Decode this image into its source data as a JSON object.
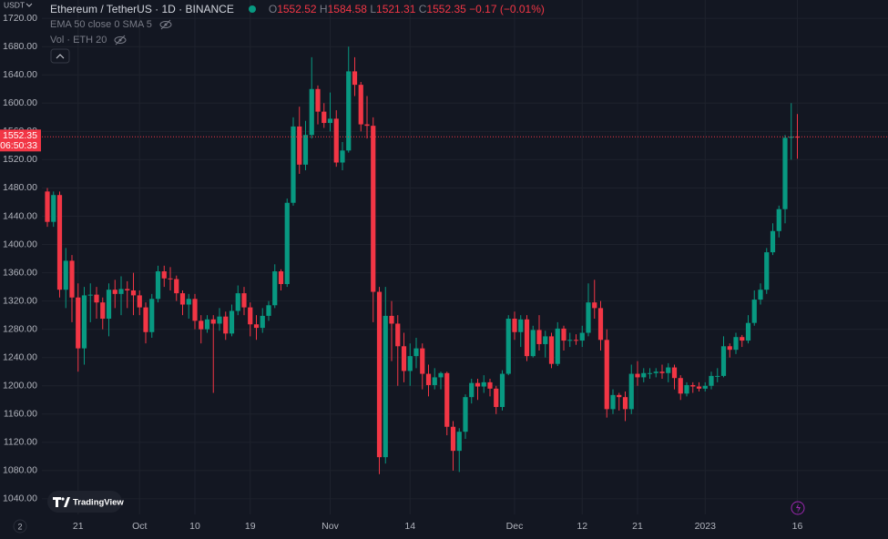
{
  "chart_data": {
    "type": "candlestick",
    "title": "Ethereum / TetherUS · 1D · BINANCE",
    "currency": "USDT",
    "indicator_1": "EMA 50 close 0 SMA 5",
    "indicator_2": "Vol · ETH 20",
    "legend": {
      "o": "O",
      "h": "H",
      "l": "L",
      "c": "C",
      "change": "−0.17 (−0.01%)"
    },
    "countdown": "06:50:33",
    "brand": "TradingView",
    "axis_corner": "2",
    "up_color": "#089981",
    "down_color": "#f23645",
    "grid": true,
    "ylim": [
      1018,
      1746
    ],
    "yticks": [
      {
        "value": 1040,
        "label": "1040.00"
      },
      {
        "value": 1080,
        "label": "1080.00"
      },
      {
        "value": 1120,
        "label": "1120.00"
      },
      {
        "value": 1160,
        "label": "1160.00"
      },
      {
        "value": 1200,
        "label": "1200.00"
      },
      {
        "value": 1240,
        "label": "1240.00"
      },
      {
        "value": 1280,
        "label": "1280.00"
      },
      {
        "value": 1320,
        "label": "1320.00"
      },
      {
        "value": 1360,
        "label": "1360.00"
      },
      {
        "value": 1400,
        "label": "1400.00"
      },
      {
        "value": 1440,
        "label": "1440.00"
      },
      {
        "value": 1480,
        "label": "1480.00"
      },
      {
        "value": 1520,
        "label": "1520.00"
      },
      {
        "value": 1560,
        "label": "1560.00"
      },
      {
        "value": 1600,
        "label": "1600.00"
      },
      {
        "value": 1640,
        "label": "1640.00"
      },
      {
        "value": 1680,
        "label": "1680.00"
      },
      {
        "value": 1720,
        "label": "1720.00"
      }
    ],
    "categories": [
      null,
      null,
      null,
      null,
      null,
      "21",
      null,
      null,
      null,
      null,
      null,
      null,
      null,
      null,
      null,
      "Oct",
      null,
      null,
      null,
      null,
      null,
      null,
      null,
      null,
      "10",
      null,
      null,
      null,
      null,
      null,
      null,
      null,
      null,
      "19",
      null,
      null,
      null,
      null,
      null,
      null,
      null,
      null,
      null,
      null,
      null,
      null,
      "Nov",
      null,
      null,
      null,
      null,
      null,
      null,
      null,
      null,
      null,
      null,
      null,
      null,
      "14",
      null,
      null,
      null,
      null,
      null,
      null,
      null,
      null,
      null,
      null,
      null,
      null,
      null,
      null,
      null,
      null,
      "Dec",
      null,
      null,
      null,
      null,
      null,
      null,
      null,
      null,
      null,
      null,
      "12",
      null,
      null,
      null,
      null,
      null,
      null,
      null,
      null,
      "21",
      null,
      null,
      null,
      null,
      null,
      null,
      null,
      null,
      null,
      null,
      "2023",
      null,
      null,
      null,
      null,
      null,
      null,
      null,
      null,
      null,
      null,
      null,
      null,
      null,
      null,
      "16"
    ],
    "open": [
      1475,
      1432,
      1470,
      1336,
      1377,
      1325,
      1253,
      1328,
      1329,
      1318,
      1295,
      1336,
      1330,
      1337,
      1335,
      1328,
      1311,
      1276,
      1323,
      1362,
      1352,
      1351,
      1331,
      1315,
      1323,
      1292,
      1280,
      1294,
      1288,
      1298,
      1274,
      1306,
      1331,
      1311,
      1287,
      1282,
      1299,
      1314,
      1362,
      1344,
      1459,
      1567,
      1513,
      1555,
      1620,
      1588,
      1572,
      1578,
      1516,
      1533,
      1645,
      1626,
      1570,
      1568,
      1333,
      1099,
      1299,
      1288,
      1256,
      1221,
      1242,
      1253,
      1217,
      1201,
      1212,
      1218,
      1142,
      1108,
      1135,
      1184,
      1204,
      1199,
      1205,
      1196,
      1170,
      1217,
      1295,
      1276,
      1294,
      1242,
      1279,
      1259,
      1270,
      1231,
      1281,
      1264,
      1265,
      1264,
      1275,
      1318,
      1310,
      1265,
      1167,
      1187,
      1184,
      1167,
      1217,
      1212,
      1218,
      1218,
      1220,
      1218,
      1226,
      1211,
      1189,
      1201,
      1199,
      1196,
      1200,
      1214,
      1214,
      1256,
      1251,
      1269,
      1264,
      1289,
      1322,
      1336,
      1389,
      1419,
      1450,
      1551,
      1552.52
    ],
    "high": [
      1480,
      1475,
      1475,
      1395,
      1385,
      1345,
      1340,
      1345,
      1340,
      1325,
      1345,
      1350,
      1355,
      1348,
      1360,
      1335,
      1318,
      1330,
      1370,
      1370,
      1368,
      1356,
      1335,
      1330,
      1330,
      1300,
      1300,
      1300,
      1310,
      1305,
      1315,
      1342,
      1340,
      1318,
      1300,
      1310,
      1320,
      1372,
      1365,
      1465,
      1580,
      1595,
      1575,
      1665,
      1625,
      1600,
      1615,
      1590,
      1545,
      1680,
      1665,
      1630,
      1610,
      1580,
      1340,
      1340,
      1320,
      1300,
      1275,
      1260,
      1268,
      1260,
      1230,
      1225,
      1220,
      1220,
      1150,
      1140,
      1188,
      1210,
      1210,
      1215,
      1210,
      1200,
      1222,
      1300,
      1305,
      1300,
      1300,
      1285,
      1300,
      1278,
      1275,
      1290,
      1285,
      1275,
      1273,
      1285,
      1345,
      1350,
      1320,
      1280,
      1195,
      1190,
      1192,
      1230,
      1235,
      1225,
      1225,
      1225,
      1230,
      1232,
      1230,
      1215,
      1205,
      1205,
      1205,
      1205,
      1220,
      1225,
      1270,
      1260,
      1275,
      1272,
      1300,
      1335,
      1345,
      1395,
      1430,
      1455,
      1555,
      1600,
      1584.58
    ],
    "low": [
      1425,
      1425,
      1325,
      1310,
      1290,
      1220,
      1230,
      1290,
      1295,
      1280,
      1270,
      1310,
      1300,
      1310,
      1300,
      1300,
      1260,
      1268,
      1318,
      1340,
      1335,
      1320,
      1300,
      1295,
      1280,
      1260,
      1275,
      1190,
      1278,
      1265,
      1270,
      1300,
      1300,
      1270,
      1265,
      1275,
      1292,
      1310,
      1335,
      1340,
      1455,
      1500,
      1505,
      1550,
      1570,
      1565,
      1560,
      1510,
      1505,
      1530,
      1610,
      1560,
      1550,
      1290,
      1075,
      1090,
      1235,
      1200,
      1205,
      1200,
      1225,
      1195,
      1185,
      1195,
      1195,
      1130,
      1080,
      1078,
      1125,
      1175,
      1180,
      1190,
      1185,
      1160,
      1165,
      1215,
      1265,
      1255,
      1235,
      1240,
      1250,
      1240,
      1225,
      1228,
      1250,
      1255,
      1258,
      1255,
      1270,
      1295,
      1250,
      1155,
      1160,
      1165,
      1150,
      1160,
      1200,
      1205,
      1210,
      1212,
      1210,
      1205,
      1195,
      1180,
      1185,
      1190,
      1192,
      1192,
      1195,
      1205,
      1212,
      1240,
      1245,
      1255,
      1260,
      1285,
      1315,
      1330,
      1385,
      1410,
      1430,
      1520,
      1521.31
    ],
    "close": [
      1432,
      1470,
      1336,
      1377,
      1325,
      1253,
      1328,
      1329,
      1318,
      1295,
      1336,
      1330,
      1337,
      1335,
      1328,
      1311,
      1276,
      1323,
      1362,
      1352,
      1351,
      1331,
      1315,
      1323,
      1292,
      1280,
      1294,
      1288,
      1298,
      1274,
      1306,
      1331,
      1311,
      1287,
      1282,
      1299,
      1314,
      1362,
      1344,
      1459,
      1567,
      1513,
      1555,
      1620,
      1588,
      1572,
      1578,
      1516,
      1533,
      1645,
      1626,
      1570,
      1568,
      1333,
      1099,
      1299,
      1288,
      1256,
      1221,
      1242,
      1253,
      1217,
      1201,
      1212,
      1218,
      1142,
      1108,
      1135,
      1184,
      1204,
      1199,
      1205,
      1196,
      1170,
      1217,
      1295,
      1276,
      1294,
      1242,
      1279,
      1259,
      1270,
      1231,
      1281,
      1264,
      1265,
      1264,
      1275,
      1318,
      1310,
      1265,
      1167,
      1187,
      1184,
      1167,
      1217,
      1212,
      1218,
      1218,
      1220,
      1218,
      1226,
      1211,
      1189,
      1201,
      1199,
      1196,
      1200,
      1214,
      1214,
      1256,
      1251,
      1269,
      1264,
      1289,
      1322,
      1336,
      1389,
      1419,
      1450,
      1551,
      1552.52,
      1552.35
    ]
  }
}
